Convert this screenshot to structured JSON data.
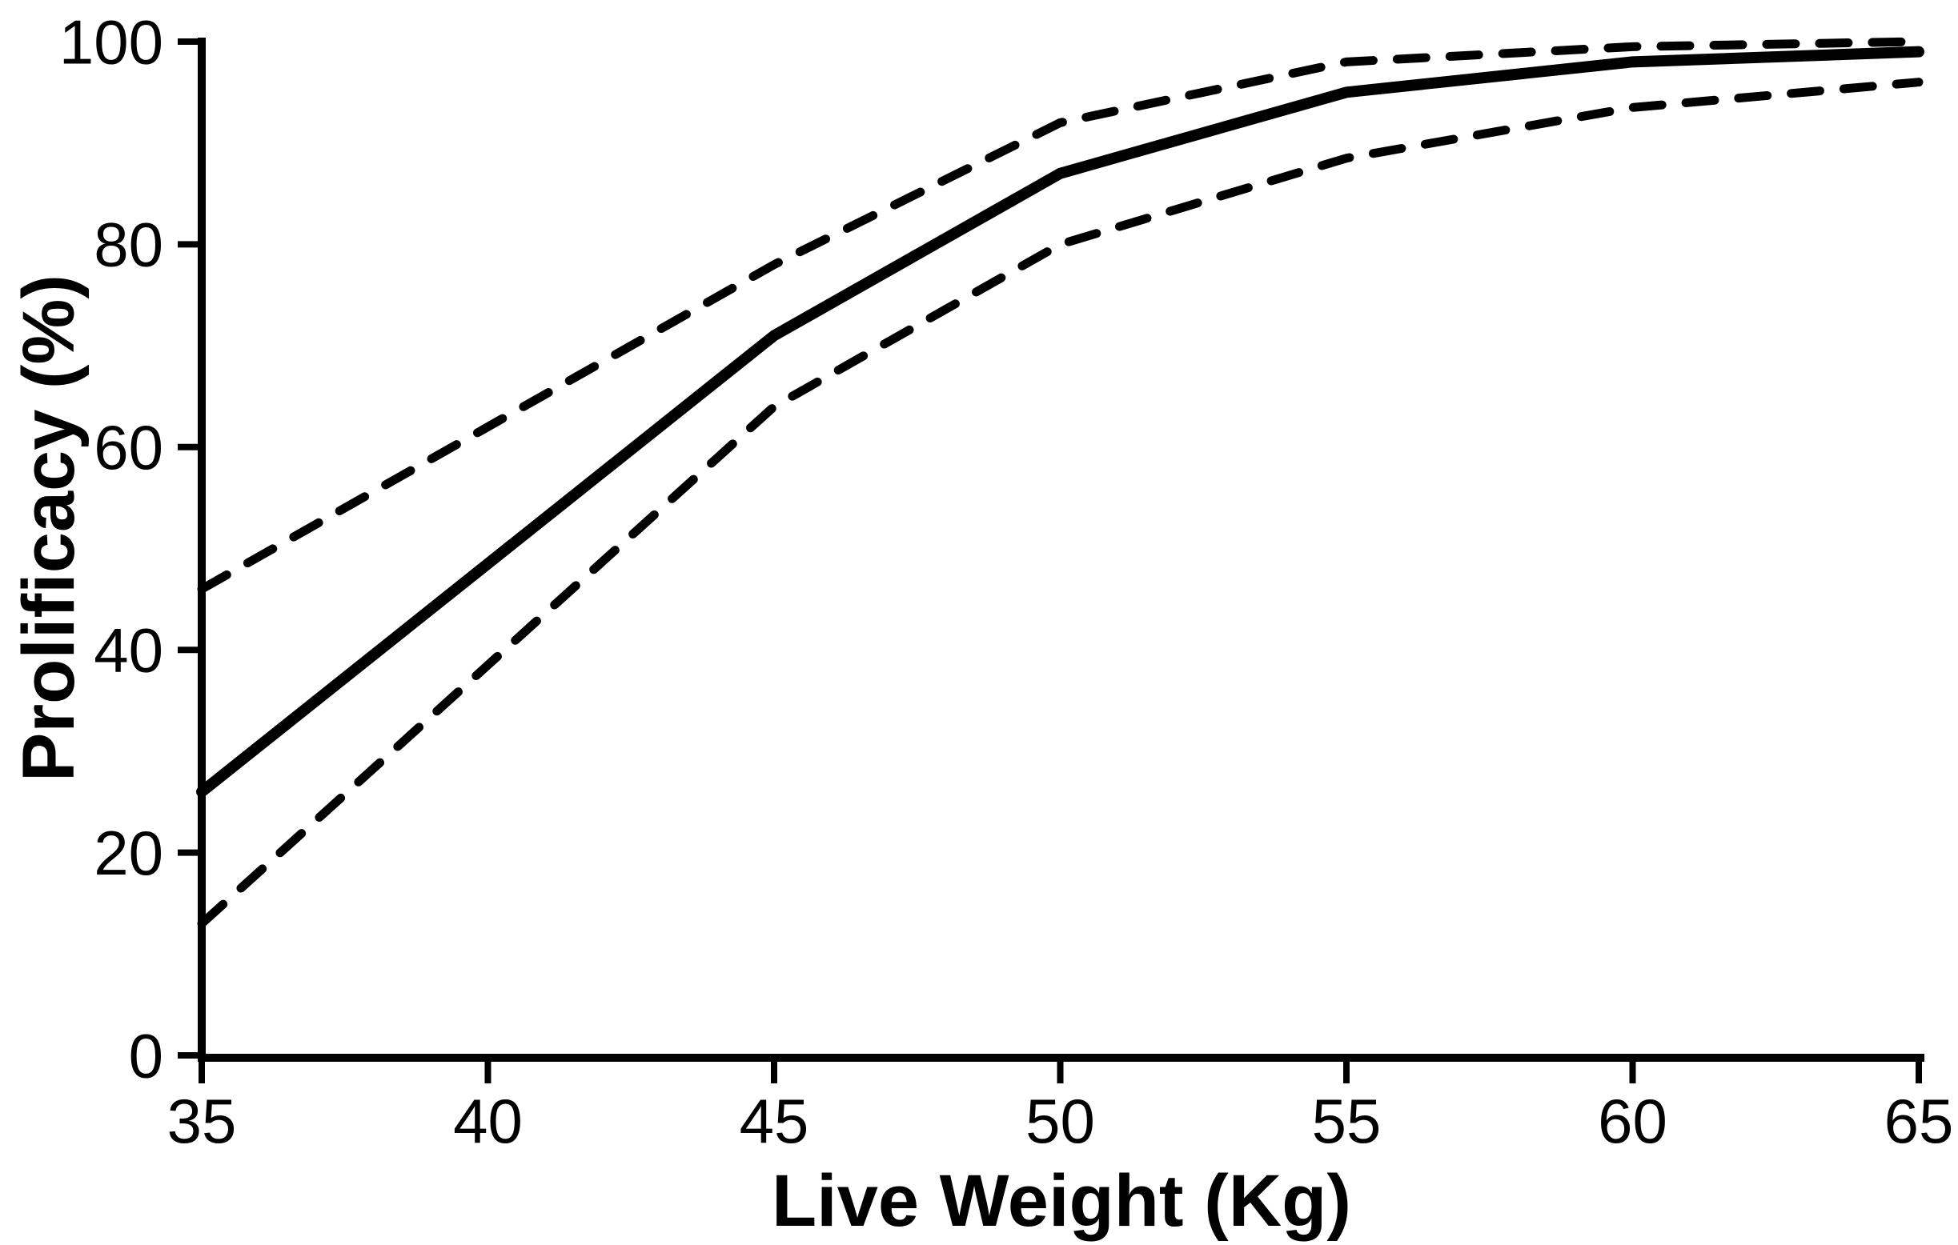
{
  "chart_data": {
    "type": "line",
    "x": [
      35,
      40,
      45,
      50,
      55,
      60,
      65
    ],
    "series": [
      {
        "name": "prolificacy-mean-line",
        "style": "solid",
        "values": [
          26,
          48.5,
          71,
          87,
          95,
          98,
          99
        ]
      },
      {
        "name": "upper-confidence-band-line",
        "style": "dashed",
        "values": [
          46,
          62,
          78,
          92,
          98,
          99.5,
          100
        ]
      },
      {
        "name": "lower-confidence-band-line",
        "style": "dashed",
        "values": [
          13,
          38.5,
          64,
          80,
          88.5,
          93.5,
          96
        ]
      }
    ],
    "title": "",
    "xlabel": "Live Weight (Kg)",
    "ylabel": "Prolificacy (%)",
    "xlim": [
      35,
      65
    ],
    "ylim": [
      0,
      100
    ],
    "x_ticks": [
      "35",
      "40",
      "45",
      "50",
      "55",
      "60",
      "65"
    ],
    "y_ticks": [
      "0",
      "20",
      "40",
      "60",
      "80",
      "100"
    ],
    "grid": false,
    "legend": false,
    "line_color": "#000000",
    "background_color": "#ffffff"
  }
}
